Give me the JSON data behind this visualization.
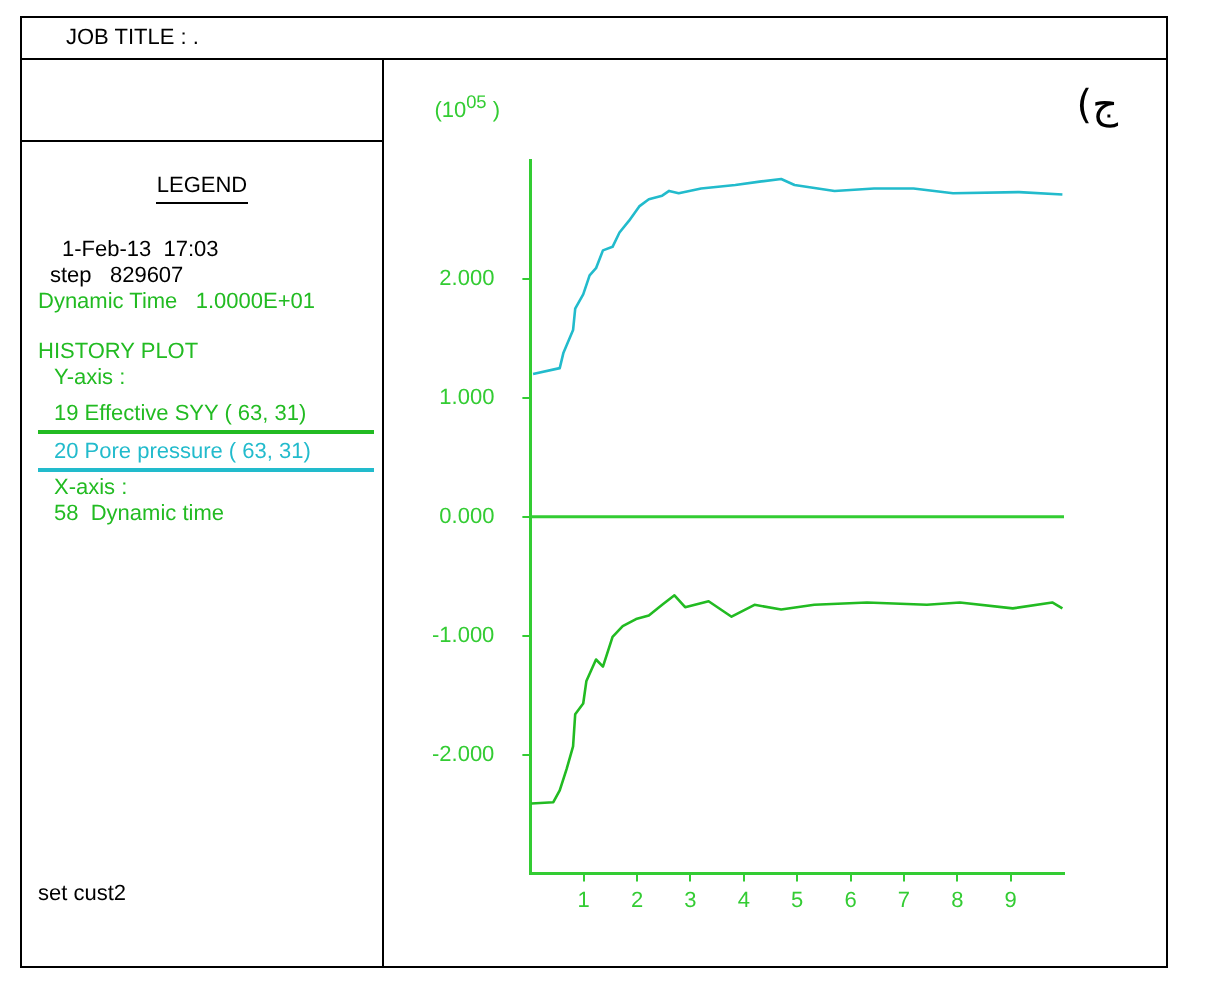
{
  "chart_data": {
    "type": "line",
    "ylabel": "(10$^{05}$ )",
    "legend": "left",
    "marker": "none",
    "line_style": "solid",
    "grid": false,
    "xlim": [
      0,
      10
    ],
    "xticks": [
      1,
      2,
      3,
      4,
      5,
      6,
      7,
      8,
      9
    ],
    "ylim": [
      -3,
      3
    ],
    "yticks": [
      {
        "value": -2,
        "label": "-2.000"
      },
      {
        "value": -1,
        "label": "-1.000"
      },
      {
        "value": 0,
        "label": "0.000"
      },
      {
        "value": 1,
        "label": "1.000"
      },
      {
        "value": 2,
        "label": "2.000"
      }
    ],
    "ref_lines": [
      {
        "axis": "y",
        "value": 0,
        "color": "#33cc33"
      }
    ],
    "annotations": [
      "JOB TITLE : .",
      "LEGEND",
      "1-Feb-13  17:03",
      "step   829607",
      "Dynamic Time   1.0000E+01",
      "HISTORY PLOT",
      "Y-axis :",
      "X-axis :",
      "58  Dynamic time",
      "set cust2",
      "ج)"
    ],
    "series": [
      {
        "name": "19 Effective SYY (  63,  31)",
        "color": "#22bb22",
        "x": [
          0.02,
          0.43,
          0.55,
          0.68,
          0.8,
          0.84,
          0.99,
          1.05,
          1.23,
          1.36,
          1.54,
          1.73,
          1.98,
          2.22,
          2.47,
          2.7,
          2.9,
          3.34,
          3.77,
          4.2,
          4.7,
          5.32,
          6.31,
          7.43,
          8.05,
          9.04,
          9.78,
          9.97
        ],
        "values": [
          -2.41,
          -2.4,
          -2.3,
          -2.12,
          -1.93,
          -1.66,
          -1.57,
          -1.38,
          -1.2,
          -1.26,
          -1.01,
          -0.92,
          -0.86,
          -0.83,
          -0.74,
          -0.66,
          -0.76,
          -0.71,
          -0.84,
          -0.74,
          -0.78,
          -0.74,
          -0.72,
          -0.74,
          -0.72,
          -0.77,
          -0.72,
          -0.77
        ]
      },
      {
        "name": "20 Pore pressure (  63,  31)",
        "color": "#22bbcc",
        "x": [
          0.05,
          0.55,
          0.62,
          0.8,
          0.84,
          0.99,
          1.11,
          1.23,
          1.36,
          1.54,
          1.67,
          1.85,
          2.04,
          2.22,
          2.47,
          2.6,
          2.78,
          3.2,
          3.84,
          4.33,
          4.7,
          4.95,
          5.7,
          6.44,
          7.18,
          7.92,
          9.16,
          9.97
        ],
        "values": [
          1.2,
          1.25,
          1.38,
          1.57,
          1.75,
          1.87,
          2.03,
          2.09,
          2.24,
          2.27,
          2.39,
          2.49,
          2.61,
          2.67,
          2.7,
          2.74,
          2.72,
          2.76,
          2.79,
          2.82,
          2.84,
          2.79,
          2.74,
          2.76,
          2.76,
          2.72,
          2.73,
          2.71
        ]
      }
    ]
  }
}
